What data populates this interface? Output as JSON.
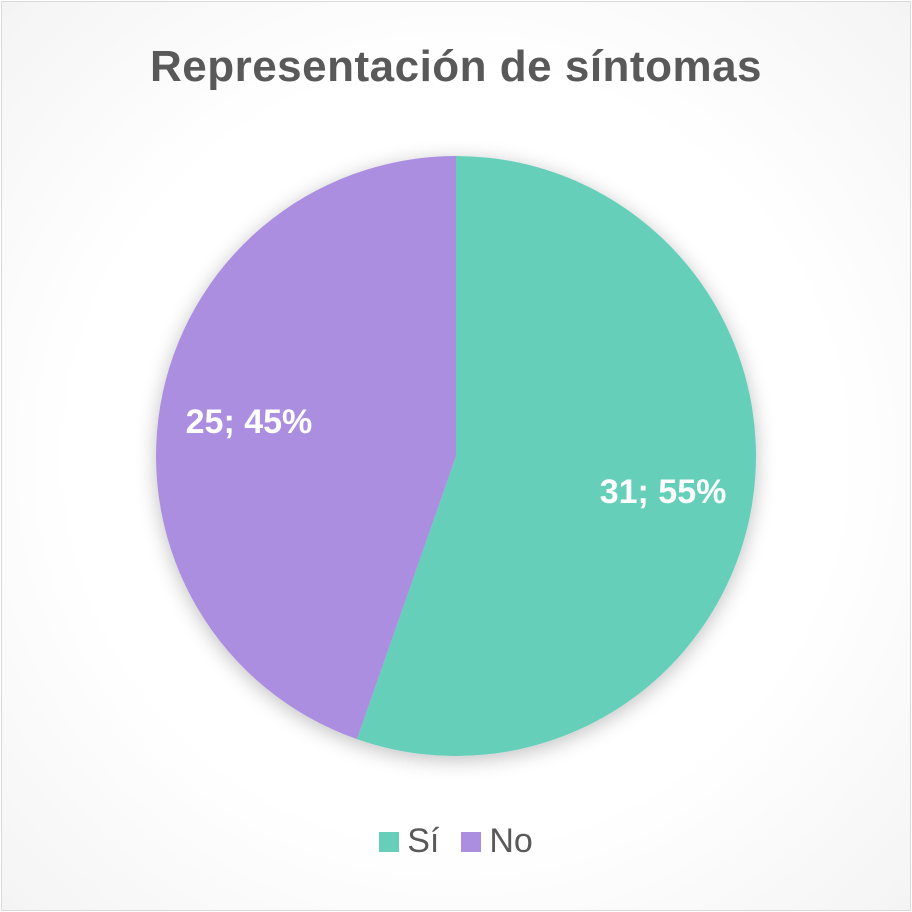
{
  "chart_data": {
    "type": "pie",
    "title": "Representación de síntomas",
    "start_angle_deg": 0,
    "direction": "clockwise",
    "legend_position": "bottom",
    "slices": [
      {
        "name": "Sí",
        "value": 31,
        "percent": 55,
        "label": "31; 55%",
        "color": "#66cfba"
      },
      {
        "name": "No",
        "value": 25,
        "percent": 45,
        "label": "25; 45%",
        "color": "#ab8ee0"
      }
    ]
  },
  "legend": {
    "items": [
      {
        "label": "Sí",
        "color": "#66cfba"
      },
      {
        "label": "No",
        "color": "#ab8ee0"
      }
    ]
  }
}
